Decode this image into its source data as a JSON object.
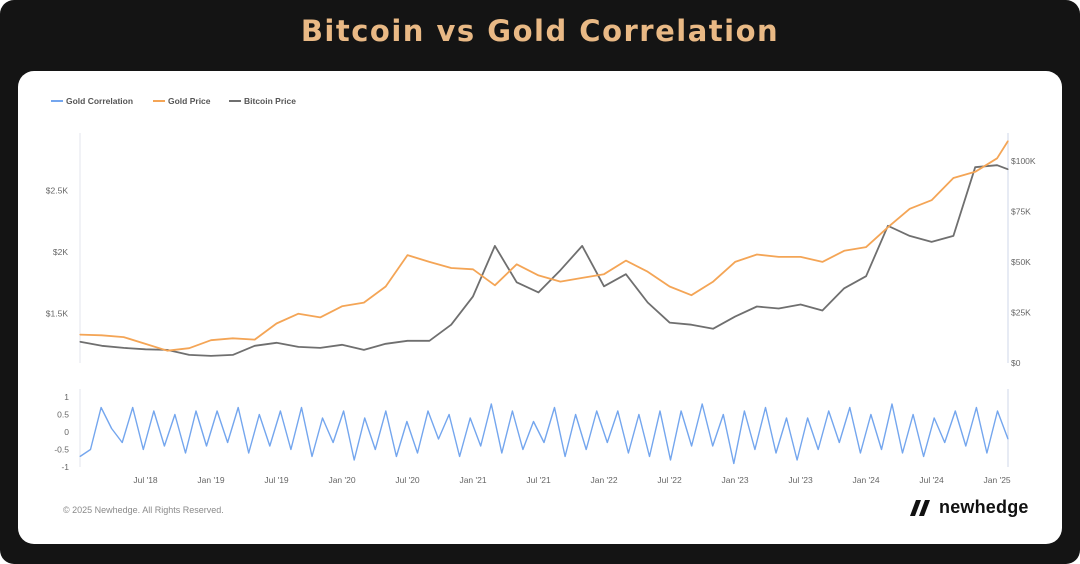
{
  "page": {
    "title": "Bitcoin vs Gold Correlation",
    "copyright": "© 2025 Newhedge. All Rights Reserved.",
    "brand": "newhedge",
    "brand_icon": "newhedge-logo-icon"
  },
  "colors": {
    "background": "#141414",
    "title": "#e9b985",
    "gold": "#f4a556",
    "bitcoin": "#6f6f6f",
    "correlation": "#74a6ee"
  },
  "chart_data": [
    {
      "type": "line",
      "title": "",
      "legend": [
        "Gold Correlation",
        "Gold Price",
        "Bitcoin Price"
      ],
      "legend_position": "top-left",
      "x": [
        "2018-01",
        "2018-03",
        "2018-05",
        "2018-07",
        "2018-09",
        "2018-11",
        "2019-01",
        "2019-03",
        "2019-05",
        "2019-07",
        "2019-09",
        "2019-11",
        "2020-01",
        "2020-03",
        "2020-05",
        "2020-07",
        "2020-09",
        "2020-11",
        "2021-01",
        "2021-03",
        "2021-05",
        "2021-07",
        "2021-09",
        "2021-11",
        "2022-01",
        "2022-03",
        "2022-05",
        "2022-07",
        "2022-09",
        "2022-11",
        "2023-01",
        "2023-03",
        "2023-05",
        "2023-07",
        "2023-09",
        "2023-11",
        "2024-01",
        "2024-03",
        "2024-05",
        "2024-07",
        "2024-09",
        "2024-11",
        "2025-01",
        "2025-02"
      ],
      "x_tick_labels": [
        "Jul '18",
        "Jan '19",
        "Jul '19",
        "Jan '20",
        "Jul '20",
        "Jan '21",
        "Jul '21",
        "Jan '22",
        "Jul '22",
        "Jan '23",
        "Jul '23",
        "Jan '24",
        "Jul '24",
        "Jan '25"
      ],
      "y_left_ticks": [
        "$1.5K",
        "$2K",
        "$2.5K"
      ],
      "y_left_range": [
        1100,
        2900
      ],
      "y_right_ticks": [
        "$0",
        "$25K",
        "$50K",
        "$75K",
        "$100K"
      ],
      "y_right_range": [
        0,
        110000
      ],
      "grid": false,
      "series": [
        {
          "name": "Gold Price",
          "axis": "left",
          "values": [
            1330,
            1325,
            1310,
            1255,
            1200,
            1220,
            1285,
            1300,
            1290,
            1420,
            1500,
            1470,
            1560,
            1590,
            1720,
            1975,
            1920,
            1870,
            1860,
            1730,
            1900,
            1810,
            1760,
            1790,
            1820,
            1930,
            1840,
            1720,
            1650,
            1760,
            1920,
            1980,
            1960,
            1960,
            1920,
            2010,
            2040,
            2200,
            2350,
            2420,
            2600,
            2650,
            2760,
            2900
          ]
        },
        {
          "name": "Bitcoin Price",
          "axis": "right",
          "values": [
            10500,
            8500,
            7500,
            6800,
            6500,
            4000,
            3500,
            4000,
            8500,
            10000,
            8000,
            7500,
            9000,
            6500,
            9500,
            11000,
            11000,
            19000,
            33000,
            58000,
            40000,
            35000,
            46000,
            58000,
            38000,
            44000,
            30000,
            20000,
            19000,
            17000,
            23000,
            28000,
            27000,
            29000,
            26000,
            37000,
            43000,
            68000,
            63000,
            60000,
            63000,
            97000,
            98000,
            96000
          ]
        }
      ]
    },
    {
      "type": "line",
      "title": "",
      "y_ticks": [
        "1",
        "0.5",
        "0",
        "-0.5",
        "-1"
      ],
      "ylim": [
        -1,
        1
      ],
      "grid": false,
      "series": [
        {
          "name": "Gold Correlation",
          "values": [
            -0.7,
            -0.5,
            0.7,
            0.1,
            -0.3,
            0.7,
            -0.5,
            0.6,
            -0.4,
            0.5,
            -0.6,
            0.6,
            -0.4,
            0.6,
            -0.3,
            0.7,
            -0.6,
            0.5,
            -0.4,
            0.6,
            -0.5,
            0.7,
            -0.7,
            0.4,
            -0.3,
            0.6,
            -0.8,
            0.4,
            -0.5,
            0.6,
            -0.7,
            0.3,
            -0.6,
            0.6,
            -0.2,
            0.5,
            -0.7,
            0.4,
            -0.4,
            0.8,
            -0.6,
            0.6,
            -0.5,
            0.3,
            -0.3,
            0.7,
            -0.7,
            0.5,
            -0.5,
            0.6,
            -0.3,
            0.6,
            -0.6,
            0.5,
            -0.7,
            0.6,
            -0.8,
            0.6,
            -0.4,
            0.8,
            -0.4,
            0.5,
            -0.9,
            0.6,
            -0.5,
            0.7,
            -0.6,
            0.4,
            -0.8,
            0.4,
            -0.5,
            0.6,
            -0.3,
            0.7,
            -0.6,
            0.5,
            -0.5,
            0.8,
            -0.6,
            0.5,
            -0.7,
            0.4,
            -0.3,
            0.6,
            -0.4,
            0.7,
            -0.6,
            0.6,
            -0.2
          ]
        }
      ]
    }
  ]
}
